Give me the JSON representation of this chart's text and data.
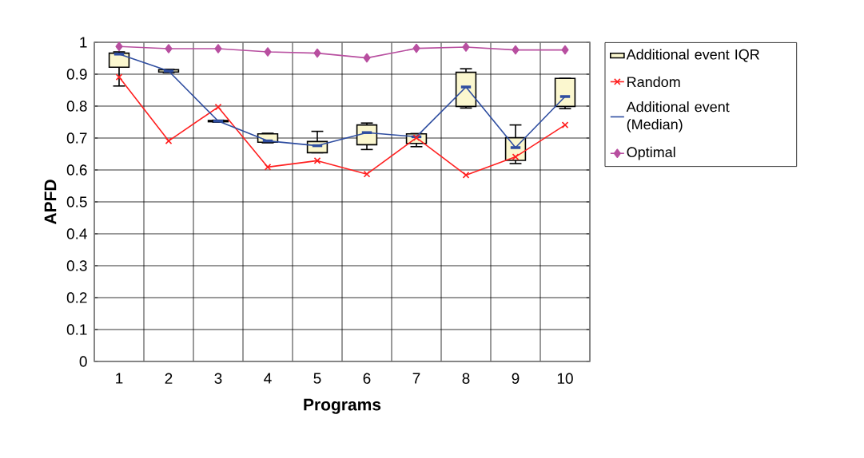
{
  "chart_data": {
    "type": "box",
    "xlabel": "Programs",
    "ylabel": "APFD",
    "categories": [
      "1",
      "2",
      "3",
      "4",
      "5",
      "6",
      "7",
      "8",
      "9",
      "10"
    ],
    "ylim": [
      0,
      1
    ],
    "yticks": [
      0,
      0.1,
      0.2,
      0.3,
      0.4,
      0.5,
      0.6,
      0.7,
      0.8,
      0.9,
      1
    ],
    "grid": true,
    "legend": "right",
    "series": [
      {
        "name": "Additional event IQR",
        "color": "#fbf7cf",
        "boxes": [
          {
            "low": 0.863,
            "q1": 0.922,
            "median": 0.963,
            "q3": 0.966,
            "high": 0.97
          },
          {
            "low": 0.905,
            "q1": 0.907,
            "median": 0.91,
            "q3": 0.914,
            "high": 0.915
          },
          {
            "low": 0.75,
            "q1": 0.751,
            "median": 0.753,
            "q3": 0.755,
            "high": 0.756
          },
          {
            "low": 0.685,
            "q1": 0.687,
            "median": 0.691,
            "q3": 0.713,
            "high": 0.715
          },
          {
            "low": 0.654,
            "q1": 0.654,
            "median": 0.676,
            "q3": 0.689,
            "high": 0.721
          },
          {
            "low": 0.664,
            "q1": 0.679,
            "median": 0.717,
            "q3": 0.741,
            "high": 0.747
          },
          {
            "low": 0.673,
            "q1": 0.683,
            "median": 0.704,
            "q3": 0.713,
            "high": 0.714
          },
          {
            "low": 0.794,
            "q1": 0.799,
            "median": 0.86,
            "q3": 0.906,
            "high": 0.917
          },
          {
            "low": 0.62,
            "q1": 0.63,
            "median": 0.67,
            "q3": 0.701,
            "high": 0.741
          },
          {
            "low": 0.792,
            "q1": 0.799,
            "median": 0.83,
            "q3": 0.887,
            "high": 0.887
          }
        ]
      },
      {
        "name": "Random",
        "type": "line",
        "color": "#ff2020",
        "marker": "cross",
        "values": [
          0.891,
          0.691,
          0.797,
          0.609,
          0.629,
          0.587,
          0.701,
          0.584,
          0.641,
          0.741
        ]
      },
      {
        "name": "Additional event (Median)",
        "type": "line",
        "color": "#2e4da0",
        "marker": "none",
        "values": [
          0.963,
          0.91,
          0.753,
          0.691,
          0.676,
          0.717,
          0.704,
          0.86,
          0.67,
          0.83
        ]
      },
      {
        "name": "Optimal",
        "type": "line",
        "color": "#b84fa0",
        "marker": "diamond",
        "values": [
          0.987,
          0.98,
          0.98,
          0.97,
          0.966,
          0.951,
          0.981,
          0.985,
          0.976,
          0.976
        ]
      }
    ]
  }
}
